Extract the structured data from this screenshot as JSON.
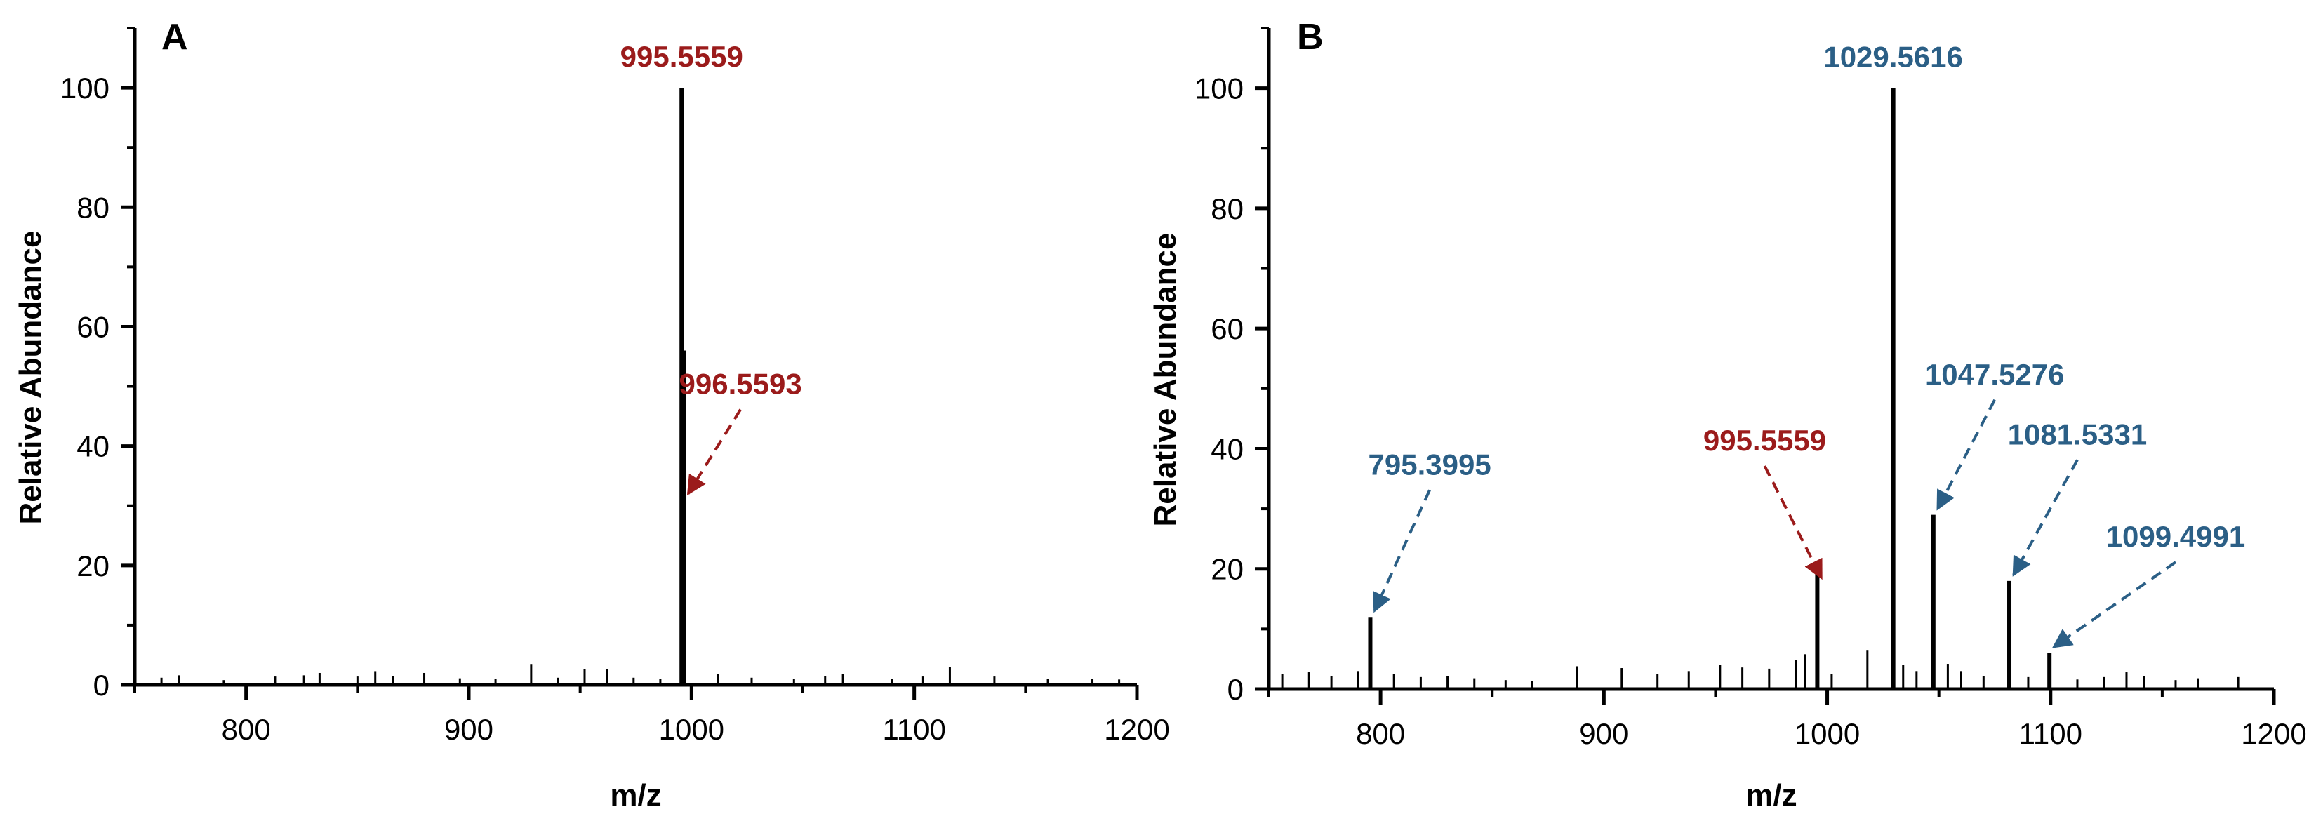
{
  "chart_data": [
    {
      "type": "bar",
      "panel_label": "A",
      "xlabel": "m/z",
      "ylabel": "Relative Abundance",
      "xlim": [
        750,
        1200
      ],
      "ylim": [
        0,
        110
      ],
      "x_ticks": [
        800,
        900,
        1000,
        1100,
        1200
      ],
      "y_ticks": [
        0,
        20,
        40,
        60,
        80,
        100
      ],
      "peaks": [
        {
          "x": 995.5559,
          "y": 100
        },
        {
          "x": 996.5593,
          "y": 56
        }
      ],
      "noise": [
        {
          "x": 762,
          "y": 1.2
        },
        {
          "x": 770,
          "y": 1.6
        },
        {
          "x": 790,
          "y": 0.8
        },
        {
          "x": 813,
          "y": 1.4
        },
        {
          "x": 826,
          "y": 1.6
        },
        {
          "x": 833,
          "y": 2.0
        },
        {
          "x": 850,
          "y": 1.4
        },
        {
          "x": 858,
          "y": 2.3
        },
        {
          "x": 866,
          "y": 1.5
        },
        {
          "x": 880,
          "y": 2.0
        },
        {
          "x": 896,
          "y": 1.1
        },
        {
          "x": 912,
          "y": 1.0
        },
        {
          "x": 928,
          "y": 3.5
        },
        {
          "x": 940,
          "y": 1.2
        },
        {
          "x": 952,
          "y": 2.6
        },
        {
          "x": 962,
          "y": 2.7
        },
        {
          "x": 974,
          "y": 1.2
        },
        {
          "x": 986,
          "y": 1.0
        },
        {
          "x": 1012,
          "y": 1.8
        },
        {
          "x": 1027,
          "y": 1.2
        },
        {
          "x": 1046,
          "y": 1.0
        },
        {
          "x": 1060,
          "y": 1.5
        },
        {
          "x": 1068,
          "y": 1.8
        },
        {
          "x": 1090,
          "y": 1.0
        },
        {
          "x": 1104,
          "y": 1.4
        },
        {
          "x": 1116,
          "y": 3.0
        },
        {
          "x": 1136,
          "y": 1.4
        },
        {
          "x": 1160,
          "y": 1.0
        },
        {
          "x": 1180,
          "y": 1.0
        },
        {
          "x": 1192,
          "y": 0.9
        }
      ],
      "annotations": [
        {
          "text": "995.5559",
          "x": 995.5559,
          "y": 100,
          "color": "#9b1b1b",
          "arrow": false
        },
        {
          "text": "996.5593",
          "x": 996.5593,
          "y": 32,
          "color": "#9b1b1b",
          "arrow": true,
          "label_x": 1022,
          "label_y": 48
        }
      ]
    },
    {
      "type": "bar",
      "panel_label": "B",
      "xlabel": "m/z",
      "ylabel": "Relative Abundance",
      "xlim": [
        750,
        1200
      ],
      "ylim": [
        0,
        110
      ],
      "x_ticks": [
        800,
        900,
        1000,
        1100,
        1200
      ],
      "y_ticks": [
        0,
        20,
        40,
        60,
        80,
        100
      ],
      "peaks": [
        {
          "x": 795.3995,
          "y": 12
        },
        {
          "x": 995.5559,
          "y": 20
        },
        {
          "x": 1029.5616,
          "y": 100
        },
        {
          "x": 1047.5276,
          "y": 29
        },
        {
          "x": 1081.5331,
          "y": 18
        },
        {
          "x": 1099.4991,
          "y": 6
        }
      ],
      "noise": [
        {
          "x": 756,
          "y": 2.5
        },
        {
          "x": 768,
          "y": 2.8
        },
        {
          "x": 778,
          "y": 2.2
        },
        {
          "x": 790,
          "y": 3.0
        },
        {
          "x": 806,
          "y": 2.5
        },
        {
          "x": 818,
          "y": 2.0
        },
        {
          "x": 830,
          "y": 2.2
        },
        {
          "x": 842,
          "y": 1.8
        },
        {
          "x": 856,
          "y": 1.5
        },
        {
          "x": 868,
          "y": 1.4
        },
        {
          "x": 888,
          "y": 3.8
        },
        {
          "x": 908,
          "y": 3.5
        },
        {
          "x": 924,
          "y": 2.5
        },
        {
          "x": 938,
          "y": 3.0
        },
        {
          "x": 952,
          "y": 4.0
        },
        {
          "x": 962,
          "y": 3.6
        },
        {
          "x": 974,
          "y": 3.4
        },
        {
          "x": 986,
          "y": 4.8
        },
        {
          "x": 990,
          "y": 5.8
        },
        {
          "x": 1002,
          "y": 2.5
        },
        {
          "x": 1018,
          "y": 6.4
        },
        {
          "x": 1034,
          "y": 4.0
        },
        {
          "x": 1040,
          "y": 3.0
        },
        {
          "x": 1054,
          "y": 4.2
        },
        {
          "x": 1060,
          "y": 3.0
        },
        {
          "x": 1070,
          "y": 2.2
        },
        {
          "x": 1090,
          "y": 2.0
        },
        {
          "x": 1112,
          "y": 1.6
        },
        {
          "x": 1124,
          "y": 2.0
        },
        {
          "x": 1134,
          "y": 2.8
        },
        {
          "x": 1142,
          "y": 2.2
        },
        {
          "x": 1156,
          "y": 1.5
        },
        {
          "x": 1166,
          "y": 1.8
        },
        {
          "x": 1184,
          "y": 2.0
        }
      ],
      "annotations": [
        {
          "text": "795.3995",
          "x": 795.3995,
          "y": 13,
          "color": "#2b5f86",
          "arrow": true,
          "label_x": 822,
          "label_y": 35
        },
        {
          "text": "995.5559",
          "x": 995.5559,
          "y": 18.5,
          "color": "#9b1b1b",
          "arrow": true,
          "label_x": 972,
          "label_y": 39
        },
        {
          "text": "1029.5616",
          "x": 1029.5616,
          "y": 100,
          "color": "#2b5f86",
          "arrow": false
        },
        {
          "text": "1047.5276",
          "x": 1047.5276,
          "y": 30,
          "color": "#2b5f86",
          "arrow": true,
          "label_x": 1075,
          "label_y": 50
        },
        {
          "text": "1081.5331",
          "x": 1081.5331,
          "y": 19,
          "color": "#2b5f86",
          "arrow": true,
          "label_x": 1112,
          "label_y": 40
        },
        {
          "text": "1099.4991",
          "x": 1099.4991,
          "y": 7,
          "color": "#2b5f86",
          "arrow": true,
          "label_x": 1156,
          "label_y": 23
        }
      ]
    }
  ]
}
